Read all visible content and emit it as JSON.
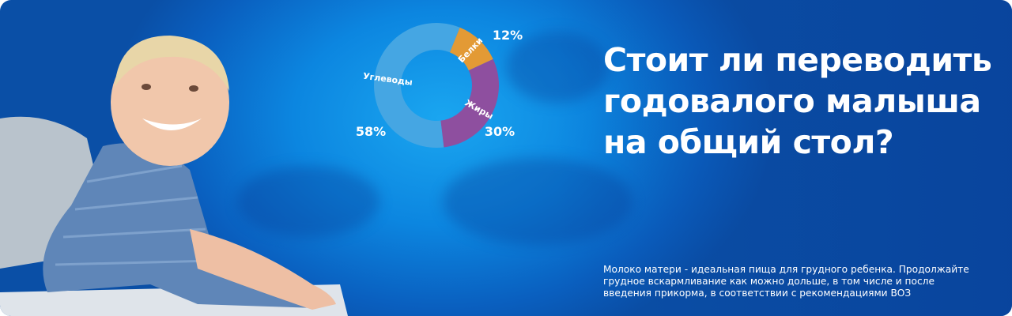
{
  "headline": {
    "lines": [
      "Стоит ли переводить",
      "годовалого малыша",
      "на общий стол?"
    ]
  },
  "disclaimer": {
    "lines": [
      "Молоко матери - идеальная пища для грудного ребенка. Продолжайте",
      "грудное вскармливание как можно дольше, в том числе и после",
      "введения прикорма, в соответствии с рекомендациями ВОЗ"
    ]
  },
  "colors": {
    "background": "#0c86e0",
    "protein": "#e39a35",
    "fat": "#8e4f9f",
    "carbs": "#45a6e3"
  },
  "chart_data": {
    "type": "pie",
    "donut": true,
    "categories": [
      "Белки",
      "Жиры",
      "Углеводы"
    ],
    "values": [
      12,
      30,
      58
    ],
    "value_labels": [
      "12%",
      "30%",
      "58%"
    ],
    "colors": [
      "#e39a35",
      "#8e4f9f",
      "#45a6e3"
    ]
  }
}
